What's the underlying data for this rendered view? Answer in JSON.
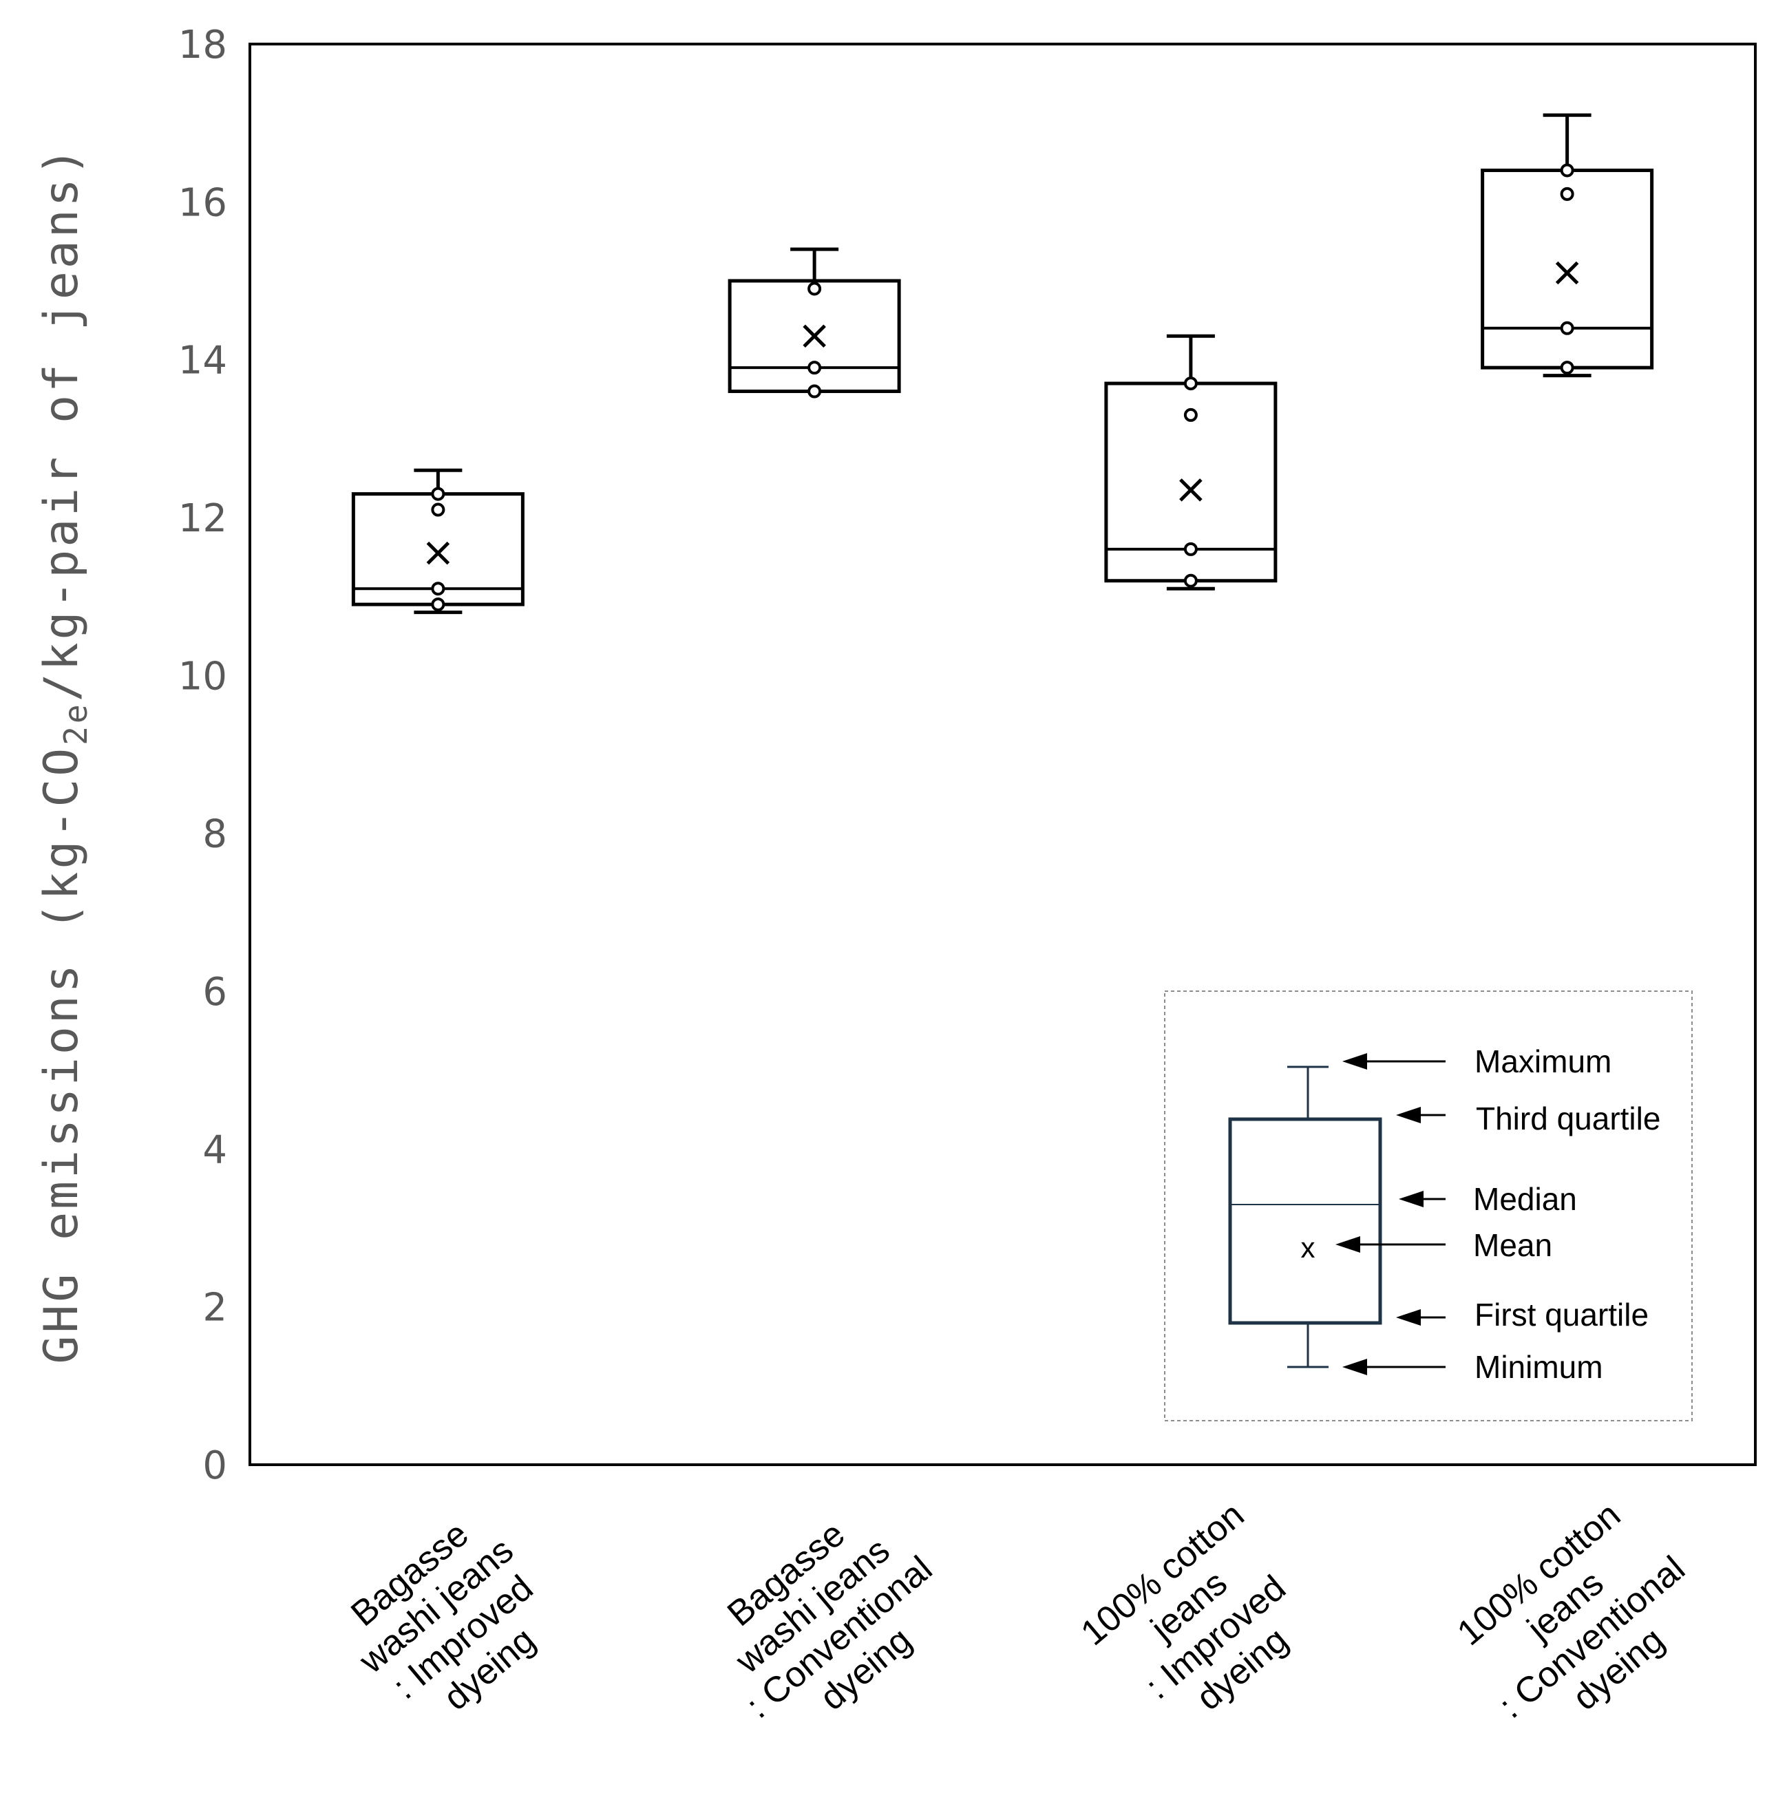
{
  "chart_data": {
    "type": "box",
    "title": "",
    "ylabel": "GHG emissions (kg-CO2e/kg-pair of jeans)",
    "ylabel_parts": {
      "before": "GHG emissions (kg-CO",
      "sub": "2e",
      "after": "/kg-pair of jeans)"
    },
    "ylim": [
      0,
      18
    ],
    "yticks": [
      0,
      2,
      4,
      6,
      8,
      10,
      12,
      14,
      16,
      18
    ],
    "grid": false,
    "categories": [
      [
        "Bagasse",
        "washi jeans",
        ": Improved",
        "dyeing"
      ],
      [
        "Bagasse",
        "washi jeans",
        ": Conventional",
        "dyeing"
      ],
      [
        "100% cotton",
        "jeans",
        ": Improved",
        "dyeing"
      ],
      [
        "100% cotton",
        "jeans",
        ": Conventional",
        "dyeing"
      ]
    ],
    "boxes": [
      {
        "min": 10.8,
        "q1": 10.9,
        "median": 11.1,
        "q3": 12.3,
        "max": 12.6,
        "mean": 11.55,
        "points": [
          10.9,
          11.1,
          12.1,
          12.3
        ]
      },
      {
        "min": 13.6,
        "q1": 13.6,
        "median": 13.9,
        "q3": 15.0,
        "max": 15.4,
        "mean": 14.3,
        "points": [
          13.6,
          13.9,
          14.9
        ]
      },
      {
        "min": 11.1,
        "q1": 11.2,
        "median": 11.6,
        "q3": 13.7,
        "max": 14.3,
        "mean": 12.35,
        "points": [
          11.2,
          11.6,
          13.3,
          13.7
        ]
      },
      {
        "min": 13.8,
        "q1": 13.9,
        "median": 14.4,
        "q3": 16.4,
        "max": 17.1,
        "mean": 15.1,
        "points": [
          13.9,
          14.4,
          16.1,
          16.4
        ]
      }
    ],
    "legend": {
      "placement": "bottom-right",
      "labels": [
        "Maximum",
        "Third quartile",
        "Median",
        "Mean",
        "First quartile",
        "Minimum"
      ],
      "mean_marker": "x"
    }
  }
}
